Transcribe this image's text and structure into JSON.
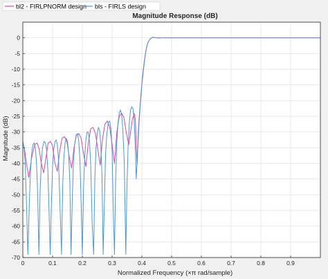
{
  "chart_data": {
    "type": "line",
    "title": "Magnitude Response (dB)",
    "xlabel": "Normalized Frequency (×π rad/sample)",
    "ylabel": "Magnitude (dB)",
    "xlim": [
      0,
      1
    ],
    "ylim": [
      -70,
      5
    ],
    "xticks": [
      0,
      0.1,
      0.2,
      0.3,
      0.4,
      0.5,
      0.6,
      0.7,
      0.8,
      0.9
    ],
    "xtick_labels": [
      "0",
      "0.1",
      "0.2",
      "0.3",
      "0.4",
      "0.5",
      "0.6",
      "0.7",
      "0.8",
      "0.9"
    ],
    "yticks": [
      0,
      -5,
      -10,
      -15,
      -20,
      -25,
      -30,
      -35,
      -40,
      -45,
      -50,
      -55,
      -60,
      -65,
      -70
    ],
    "ytick_labels": [
      "0",
      "-5",
      "-10",
      "-15",
      "-20",
      "-25",
      "-30",
      "-35",
      "-40",
      "-45",
      "-50",
      "-55",
      "-60",
      "-65",
      "-70"
    ],
    "grid": true,
    "legend_position": "top-left outside",
    "series": [
      {
        "name": "bl2 - FIRLPNORM design",
        "color": "#d946a8",
        "x": [
          0,
          0.005,
          0.012,
          0.02,
          0.03,
          0.04,
          0.048,
          0.055,
          0.062,
          0.07,
          0.078,
          0.085,
          0.093,
          0.1,
          0.108,
          0.116,
          0.124,
          0.132,
          0.14,
          0.148,
          0.156,
          0.164,
          0.172,
          0.18,
          0.188,
          0.196,
          0.204,
          0.212,
          0.22,
          0.228,
          0.236,
          0.244,
          0.252,
          0.26,
          0.268,
          0.276,
          0.284,
          0.292,
          0.3,
          0.308,
          0.316,
          0.324,
          0.332,
          0.34,
          0.348,
          0.356,
          0.362,
          0.368,
          0.374,
          0.378,
          0.381,
          0.384,
          0.388,
          0.392,
          0.397,
          0.402,
          0.408,
          0.414,
          0.42,
          0.428,
          0.435,
          0.442,
          0.45,
          0.46,
          0.47,
          0.48,
          0.5,
          0.55,
          0.6,
          0.7,
          0.8,
          0.9,
          1.0
        ],
        "values": [
          -34,
          -35,
          -40,
          -44.5,
          -38,
          -34,
          -33.5,
          -35.5,
          -40,
          -43,
          -38,
          -33.5,
          -33,
          -34.5,
          -40,
          -42.5,
          -36,
          -32,
          -31.5,
          -33,
          -38,
          -41.5,
          -35,
          -31,
          -30.5,
          -32,
          -37,
          -41,
          -33.5,
          -29,
          -28.5,
          -30.5,
          -35.5,
          -40.5,
          -32,
          -27.5,
          -26.5,
          -28.5,
          -34,
          -40,
          -30,
          -25,
          -24,
          -25.5,
          -30.5,
          -34,
          -30,
          -26,
          -24,
          -26,
          -34,
          -40.5,
          -30,
          -24,
          -18,
          -12.5,
          -7.5,
          -3.8,
          -1.6,
          -0.3,
          0.2,
          0.1,
          0,
          -0.05,
          0.05,
          0,
          0,
          0,
          0,
          0,
          0,
          0,
          0
        ]
      },
      {
        "name": "bls - FIRLS design",
        "color": "#4b96d8",
        "x": [
          0,
          0.004,
          0.008,
          0.012,
          0.017,
          0.022,
          0.026,
          0.03,
          0.034,
          0.038,
          0.042,
          0.046,
          0.05,
          0.054,
          0.058,
          0.062,
          0.066,
          0.071,
          0.076,
          0.08,
          0.084,
          0.088,
          0.092,
          0.096,
          0.1,
          0.104,
          0.108,
          0.112,
          0.116,
          0.12,
          0.125,
          0.13,
          0.134,
          0.138,
          0.142,
          0.146,
          0.15,
          0.154,
          0.158,
          0.162,
          0.166,
          0.17,
          0.174,
          0.179,
          0.184,
          0.188,
          0.192,
          0.196,
          0.2,
          0.204,
          0.208,
          0.212,
          0.216,
          0.22,
          0.224,
          0.228,
          0.233,
          0.238,
          0.242,
          0.246,
          0.25,
          0.254,
          0.258,
          0.262,
          0.266,
          0.27,
          0.274,
          0.278,
          0.282,
          0.287,
          0.292,
          0.296,
          0.3,
          0.304,
          0.308,
          0.312,
          0.316,
          0.32,
          0.324,
          0.328,
          0.332,
          0.336,
          0.341,
          0.346,
          0.35,
          0.354,
          0.358,
          0.362,
          0.366,
          0.37,
          0.374,
          0.378,
          0.381,
          0.385,
          0.39,
          0.395,
          0.4,
          0.405,
          0.41,
          0.415,
          0.42,
          0.428,
          0.436,
          0.445,
          0.455,
          0.465,
          0.48,
          0.5,
          0.55,
          0.6,
          0.7,
          0.8,
          0.9,
          1.0
        ],
        "values": [
          -33,
          -35,
          -40,
          -52,
          -69,
          -52,
          -42,
          -36.5,
          -34,
          -33.5,
          -35,
          -40,
          -50,
          -69,
          -49,
          -40,
          -35,
          -33,
          -33.5,
          -36,
          -42,
          -55,
          -69,
          -53,
          -41,
          -35.5,
          -33,
          -32.5,
          -34,
          -39,
          -54,
          -69,
          -47,
          -38,
          -33.5,
          -32,
          -33,
          -37,
          -46,
          -69,
          -52,
          -40,
          -34,
          -31,
          -30.5,
          -33,
          -39,
          -53,
          -69,
          -48,
          -38,
          -32.5,
          -30,
          -30,
          -33,
          -40,
          -59,
          -69,
          -45,
          -35,
          -30.5,
          -28.5,
          -29.5,
          -34,
          -44,
          -69,
          -53,
          -37,
          -31,
          -27,
          -26.5,
          -29,
          -36,
          -55,
          -69,
          -45,
          -33,
          -27,
          -24,
          -23,
          -24.5,
          -29,
          -40,
          -69,
          -47,
          -34,
          -27,
          -23,
          -22,
          -22.5,
          -26,
          -35,
          -45,
          -38,
          -28,
          -21,
          -15,
          -10.5,
          -6.5,
          -3.5,
          -1.5,
          -0.3,
          0.2,
          0.05,
          -0.05,
          0.05,
          0,
          0,
          0,
          0,
          0,
          0,
          0,
          0
        ]
      }
    ]
  }
}
